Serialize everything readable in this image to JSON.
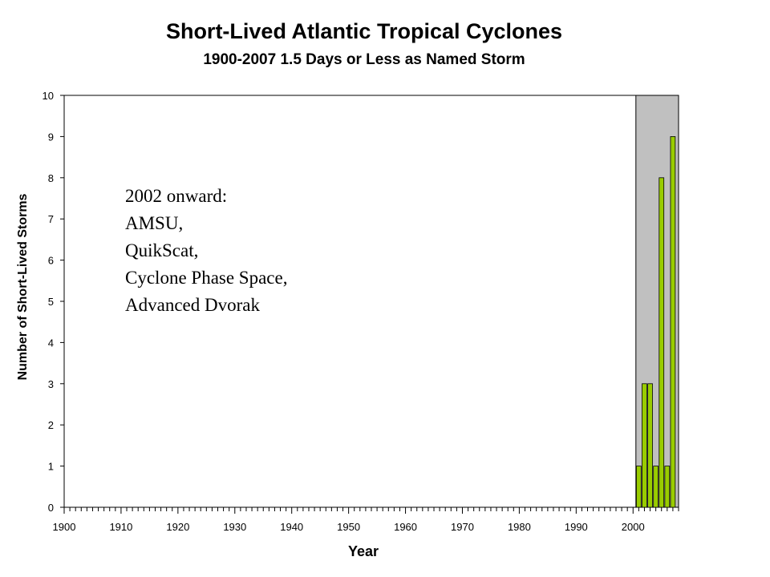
{
  "chart_data": {
    "type": "bar",
    "title": "Short-Lived Atlantic Tropical Cyclones",
    "subtitle": "1900-2007 1.5 Days or Less as Named Storm",
    "xlabel": "Year",
    "ylabel": "Number of Short-Lived Storms",
    "xlim": [
      1900,
      2008
    ],
    "ylim": [
      0,
      10
    ],
    "x_ticks": [
      1900,
      1910,
      1920,
      1930,
      1940,
      1950,
      1960,
      1970,
      1980,
      1990,
      2000
    ],
    "y_ticks": [
      0,
      1,
      2,
      3,
      4,
      5,
      6,
      7,
      8,
      9,
      10
    ],
    "grid": false,
    "shaded_region": {
      "x_from": 2001,
      "x_to": 2008,
      "color": "#c0c0c0"
    },
    "bar_color": "#99cc00",
    "x": [
      2001,
      2002,
      2003,
      2004,
      2005,
      2006,
      2007
    ],
    "values": [
      1,
      3,
      3,
      1,
      8,
      1,
      9
    ],
    "annotation": [
      "2002 onward:",
      "AMSU,",
      "QuikScat,",
      "Cyclone Phase Space,",
      "Advanced  Dvorak"
    ]
  }
}
